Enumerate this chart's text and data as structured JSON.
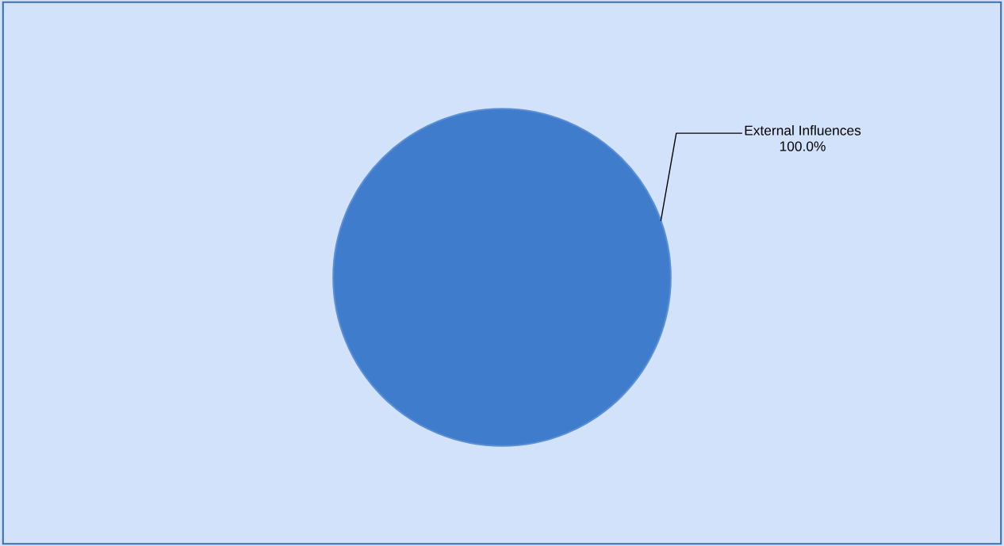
{
  "chart_data": {
    "type": "pie",
    "categories": [
      "External Influences"
    ],
    "values": [
      100.0
    ],
    "colors": [
      "#3f7ccb"
    ],
    "value_labels": [
      "100.0%"
    ],
    "legend": false
  }
}
